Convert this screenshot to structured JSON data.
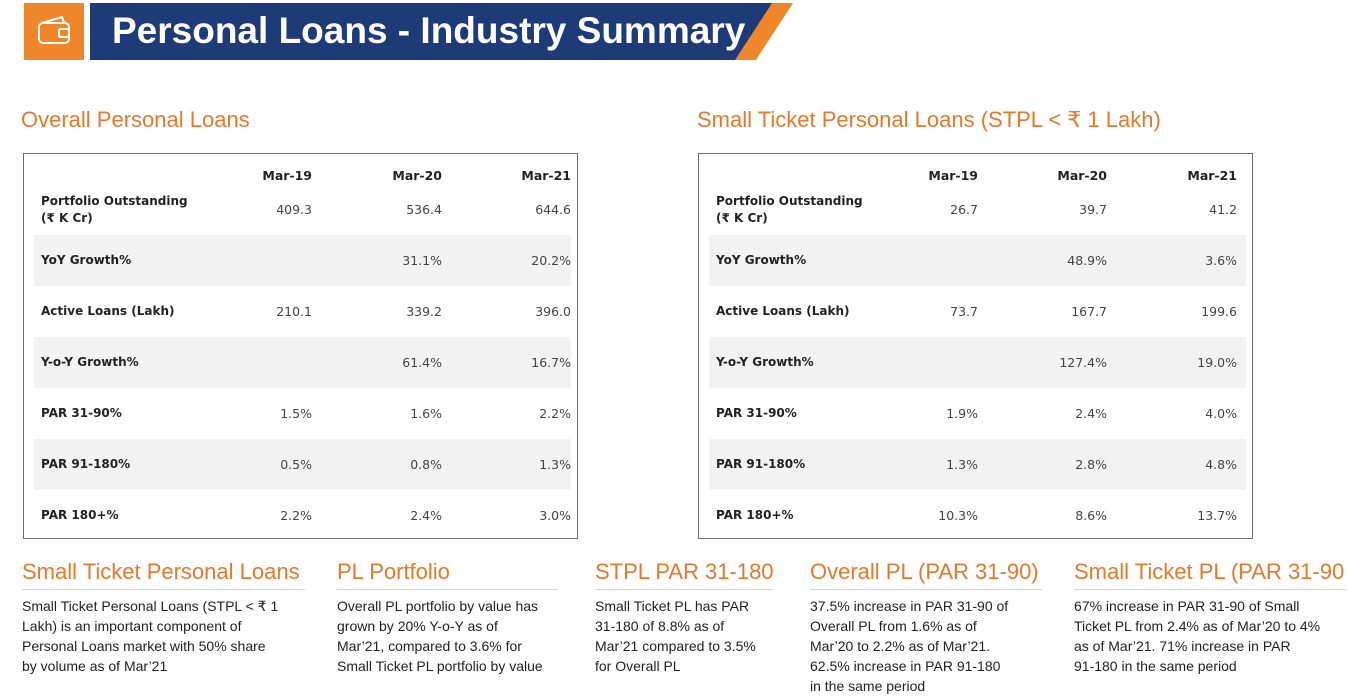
{
  "header": {
    "icon": "wallet-icon",
    "title": "Personal Loans - Industry Summary",
    "colors": {
      "banner": "#1e3b78",
      "accent": "#f0862a"
    }
  },
  "left": {
    "title": "Overall Personal Loans",
    "columns": [
      "Mar-19",
      "Mar-20",
      "Mar-21"
    ],
    "rows": [
      {
        "label": "Portfolio Outstanding\n(₹ K Cr)",
        "values": [
          "409.3",
          "536.4",
          "644.6"
        ]
      },
      {
        "label": "YoY Growth%",
        "values": [
          "",
          "31.1%",
          "20.2%"
        ]
      },
      {
        "label": "Active Loans (Lakh)",
        "values": [
          "210.1",
          "339.2",
          "396.0"
        ]
      },
      {
        "label": "Y-o-Y Growth%",
        "values": [
          "",
          "61.4%",
          "16.7%"
        ]
      },
      {
        "label": "PAR 31-90%",
        "values": [
          "1.5%",
          "1.6%",
          "2.2%"
        ]
      },
      {
        "label": "PAR 91-180%",
        "values": [
          "0.5%",
          "0.8%",
          "1.3%"
        ]
      },
      {
        "label": "PAR 180+%",
        "values": [
          "2.2%",
          "2.4%",
          "3.0%"
        ]
      }
    ]
  },
  "right": {
    "title": "Small Ticket Personal Loans (STPL < ₹ 1 Lakh)",
    "columns": [
      "Mar-19",
      "Mar-20",
      "Mar-21"
    ],
    "rows": [
      {
        "label": "Portfolio Outstanding\n(₹ K Cr)",
        "values": [
          "26.7",
          "39.7",
          "41.2"
        ]
      },
      {
        "label": "YoY Growth%",
        "values": [
          "",
          "48.9%",
          "3.6%"
        ]
      },
      {
        "label": "Active Loans (Lakh)",
        "values": [
          "73.7",
          "167.7",
          "199.6"
        ]
      },
      {
        "label": "Y-o-Y Growth%",
        "values": [
          "",
          "127.4%",
          "19.0%"
        ]
      },
      {
        "label": "PAR 31-90%",
        "values": [
          "1.9%",
          "2.4%",
          "4.0%"
        ]
      },
      {
        "label": "PAR 91-180%",
        "values": [
          "1.3%",
          "2.8%",
          "4.8%"
        ]
      },
      {
        "label": "PAR 180+%",
        "values": [
          "10.3%",
          "8.6%",
          "13.7%"
        ]
      }
    ]
  },
  "summaries": [
    {
      "title": "Small Ticket Personal Loans",
      "text": "Small Ticket Personal Loans (STPL < ₹ 1\nLakh) is an important component of\nPersonal Loans market with 50% share\nby volume as of Mar’21"
    },
    {
      "title": "PL Portfolio",
      "text": "Overall PL portfolio by value has\ngrown by 20% Y-o-Y as of\nMar’21, compared to 3.6% for\nSmall Ticket PL portfolio by value"
    },
    {
      "title": "STPL PAR 31-180",
      "text": "Small Ticket PL has PAR\n31-180 of 8.8% as of\nMar’21 compared to 3.5%\nfor Overall PL"
    },
    {
      "title": "Overall PL (PAR 31-90)",
      "text": "37.5% increase in PAR 31-90 of\nOverall PL from 1.6% as of\nMar’20 to 2.2% as of Mar’21.\n62.5% increase in PAR 91-180\nin the same period"
    },
    {
      "title": "Small Ticket PL (PAR 31-90",
      "text": "67% increase in PAR 31-90 of Small\nTicket PL from 2.4% as of Mar’20 to 4%\nas of Mar’21. 71% increase in PAR\n91-180 in the same period"
    }
  ]
}
